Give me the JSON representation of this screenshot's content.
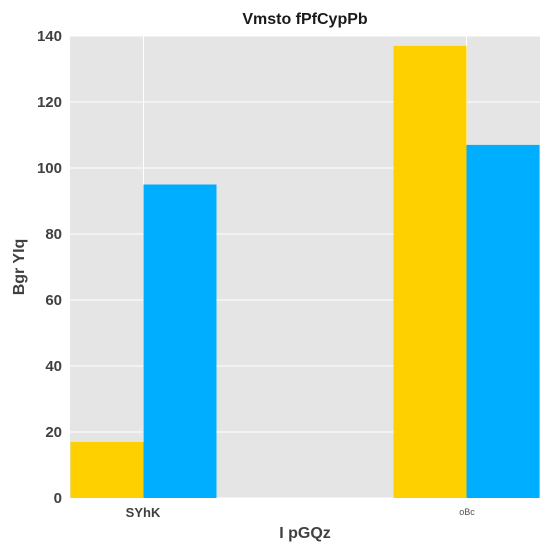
{
  "chart_data": {
    "type": "bar",
    "title": "Vmsto fPfCypPb",
    "xlabel": "I pGQz",
    "ylabel": "Bgr YIq",
    "categories": [
      "SYhK",
      "oBc"
    ],
    "series": [
      {
        "values": [
          17,
          137
        ],
        "color": "#FFD000"
      },
      {
        "values": [
          95,
          107
        ],
        "color": "#00AEFF"
      }
    ],
    "ylim": [
      0,
      140
    ],
    "yticks": [
      "0",
      "20",
      "40",
      "60",
      "80",
      "100",
      "120",
      "140"
    ],
    "grid": true,
    "legend": "none",
    "background": "#E5E5E5",
    "grid_color": "#FFFFFF"
  }
}
